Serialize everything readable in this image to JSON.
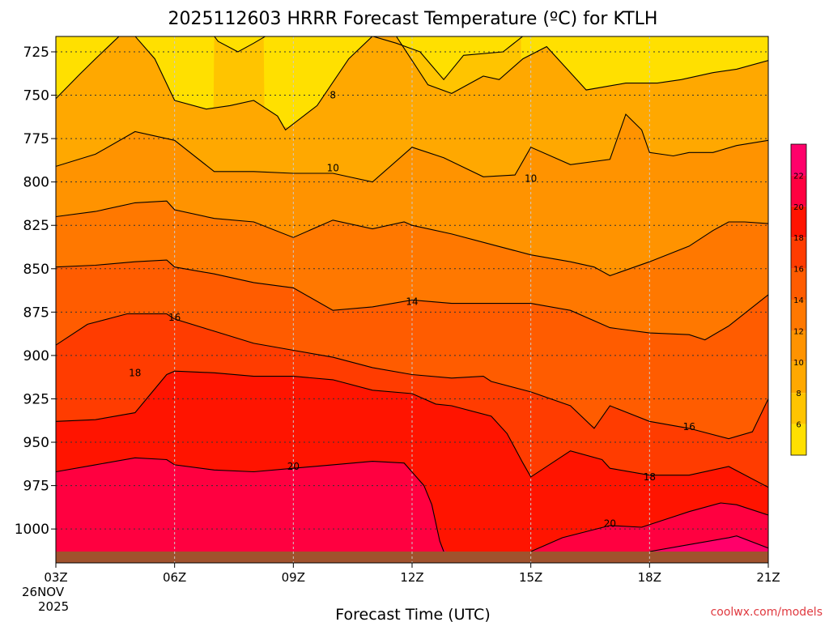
{
  "chart_data": {
    "type": "heatmap",
    "subtype": "time-height filled contour",
    "title": "2025112603 HRRR Forecast Temperature (ºC) for KTLH",
    "xlabel": "Forecast Time (UTC)",
    "ylabel": "",
    "credit": "coolwx.com/models",
    "x_axis": {
      "hours": [
        0,
        3,
        6,
        9,
        12,
        15,
        18
      ],
      "tick_labels": [
        "03Z",
        "06Z",
        "09Z",
        "12Z",
        "15Z",
        "18Z",
        "21Z"
      ],
      "start_date_line1": "26NOV",
      "start_date_line2": "2025",
      "xlim": [
        0,
        18
      ]
    },
    "y_axis": {
      "unit": "hPa",
      "ticks": [
        725,
        750,
        775,
        800,
        825,
        850,
        875,
        900,
        925,
        950,
        975,
        1000
      ],
      "tick_labels": [
        "725",
        "750",
        "775",
        "800",
        "825",
        "850",
        "875",
        "900",
        "925",
        "950",
        "975",
        "1000"
      ],
      "ylim": [
        1013,
        716
      ],
      "inverted": true
    },
    "grid": true,
    "colorbar": {
      "levels": [
        4,
        6,
        8,
        10,
        12,
        14,
        16,
        18,
        20,
        22,
        24
      ],
      "tick_values": [
        6,
        8,
        10,
        12,
        14,
        16,
        18,
        20,
        22
      ],
      "tick_labels": [
        "6",
        "8",
        "10",
        "12",
        "14",
        "16",
        "18",
        "20",
        "22"
      ],
      "colors": [
        "#ffe000",
        "#ffc400",
        "#ffa800",
        "#ff9300",
        "#ff7800",
        "#ff5c00",
        "#ff3c00",
        "#ff1400",
        "#ff0040",
        "#ff006a"
      ],
      "placement": "right"
    },
    "ground_color": "#a0522d",
    "surface_pressure": 1013,
    "contours": [
      {
        "level": 6,
        "segments": [
          {
            "x": [
              4.0,
              4.1,
              4.6,
              5.0,
              5.3
            ],
            "p": [
              716,
              719,
              725,
              720,
              716
            ]
          },
          {
            "x": [
              8.0,
              8.6,
              9.2,
              9.5,
              9.8,
              10.3,
              11.3,
              11.8
            ],
            "p": [
              716,
              720,
              725,
              733,
              741,
              727,
              725,
              716
            ]
          }
        ]
      },
      {
        "level": 8,
        "segments": [
          {
            "x": [
              0.0,
              0.6,
              1.0,
              1.6,
              2.0,
              2.5,
              3.0,
              3.8,
              4.4,
              5.0,
              5.6,
              5.8,
              6.6,
              7.4,
              8.0,
              8.6,
              9.4,
              10.0,
              10.8,
              11.2,
              11.8,
              12.4,
              12.8,
              13.4,
              14.4,
              15.2,
              15.8,
              16.6,
              17.2,
              18.0
            ],
            "p": [
              752,
              738,
              729,
              716,
              716,
              729,
              753,
              758,
              756,
              753,
              762,
              770,
              756,
              729,
              716,
              716,
              744,
              749,
              739,
              741,
              729,
              722,
              732,
              747,
              743,
              743,
              741,
              737,
              735,
              730
            ]
          }
        ]
      },
      {
        "level": 10,
        "segments": [
          {
            "x": [
              0.0,
              1.0,
              2.0,
              3.0,
              4.0,
              5.0,
              6.0,
              7.0,
              8.0,
              9.0,
              9.8,
              10.8,
              11.6,
              12.0,
              13.0,
              14.0,
              14.4,
              14.8,
              15.0,
              15.6,
              16.0,
              16.6,
              17.2,
              18.0
            ],
            "p": [
              791,
              784,
              771,
              776,
              794,
              794,
              795,
              795,
              800,
              780,
              786,
              797,
              796,
              780,
              790,
              787,
              761,
              770,
              783,
              785,
              783,
              783,
              779,
              776
            ]
          }
        ]
      },
      {
        "level": 12,
        "segments": [
          {
            "x": [
              0.0,
              1.0,
              2.0,
              2.8,
              3.0,
              4.0,
              5.0,
              6.0,
              7.0,
              8.0,
              8.8,
              9.0,
              10.0,
              11.0,
              12.0,
              13.0,
              13.6,
              14.0,
              15.0,
              16.0,
              16.6,
              17.0,
              17.4,
              18.0
            ],
            "p": [
              820,
              817,
              812,
              811,
              816,
              821,
              823,
              832,
              822,
              827,
              823,
              825,
              830,
              836,
              842,
              846,
              849,
              854,
              846,
              837,
              828,
              823,
              823,
              824
            ]
          }
        ]
      },
      {
        "level": 14,
        "segments": [
          {
            "x": [
              0.0,
              1.0,
              2.0,
              2.8,
              3.0,
              4.0,
              5.0,
              6.0,
              7.0,
              8.0,
              9.0,
              10.0,
              11.0,
              12.0,
              13.0,
              14.0,
              15.0,
              16.0,
              16.4,
              17.0,
              18.0
            ],
            "p": [
              849,
              848,
              846,
              845,
              849,
              853,
              858,
              861,
              874,
              872,
              868,
              870,
              870,
              870,
              874,
              884,
              887,
              888,
              891,
              883,
              865
            ]
          }
        ]
      },
      {
        "level": 16,
        "segments": [
          {
            "x": [
              0.0,
              0.8,
              1.8,
              2.8,
              3.0,
              4.0,
              5.0,
              6.0,
              7.0,
              8.0,
              9.0,
              10.0,
              10.8,
              11.0,
              12.0,
              13.0,
              13.6,
              14.0,
              15.0,
              16.0,
              17.0,
              17.6,
              18.0
            ],
            "p": [
              894,
              882,
              876,
              876,
              879,
              886,
              893,
              897,
              901,
              907,
              911,
              913,
              912,
              915,
              921,
              929,
              942,
              929,
              938,
              942,
              948,
              944,
              925
            ]
          }
        ]
      },
      {
        "level": 18,
        "segments": [
          {
            "x": [
              0.0,
              1.0,
              2.0,
              2.8,
              3.0,
              4.0,
              5.0,
              6.0,
              7.0,
              8.0,
              9.0,
              9.6,
              10.0,
              11.0,
              11.4,
              11.8,
              12.0,
              13.0,
              13.8,
              14.0,
              15.0,
              15.6,
              16.0,
              17.0,
              18.0
            ],
            "p": [
              938,
              937,
              933,
              911,
              909,
              910,
              912,
              912,
              914,
              920,
              922,
              928,
              929,
              935,
              945,
              962,
              970,
              955,
              960,
              965,
              969,
              969,
              969,
              964,
              976
            ]
          }
        ]
      },
      {
        "level": 20,
        "segments": [
          {
            "x": [
              0.0,
              1.0,
              2.0,
              2.8,
              3.0,
              4.0,
              5.0,
              6.0,
              7.0,
              8.0,
              8.8,
              9.3,
              9.5,
              9.7,
              9.8
            ],
            "p": [
              967,
              963,
              959,
              960,
              963,
              966,
              967,
              965,
              963,
              961,
              962,
              975,
              986,
              1007,
              1013
            ]
          },
          {
            "x": [
              12.0,
              12.8,
              14.0,
              14.8,
              16.0,
              16.8,
              17.2,
              18.0
            ],
            "p": [
              1013,
              1005,
              998,
              999,
              990,
              985,
              986,
              992
            ]
          }
        ]
      },
      {
        "level": 22,
        "segments": [
          {
            "x": [
              15.0,
              16.0,
              17.0,
              17.2,
              18.0
            ],
            "p": [
              1013,
              1009,
              1005,
              1004,
              1011
            ]
          }
        ]
      }
    ],
    "contour_labels": [
      {
        "text": "8",
        "x": 7.0,
        "p": 750
      },
      {
        "text": "10",
        "x": 7.0,
        "p": 792
      },
      {
        "text": "10",
        "x": 12.0,
        "p": 798
      },
      {
        "text": "14",
        "x": 9.0,
        "p": 869
      },
      {
        "text": "16",
        "x": 3.0,
        "p": 878
      },
      {
        "text": "18",
        "x": 2.0,
        "p": 910
      },
      {
        "text": "16",
        "x": 16.0,
        "p": 941
      },
      {
        "text": "20",
        "x": 6.0,
        "p": 964
      },
      {
        "text": "18",
        "x": 15.0,
        "p": 970
      },
      {
        "text": "20",
        "x": 14.0,
        "p": 997
      }
    ]
  }
}
